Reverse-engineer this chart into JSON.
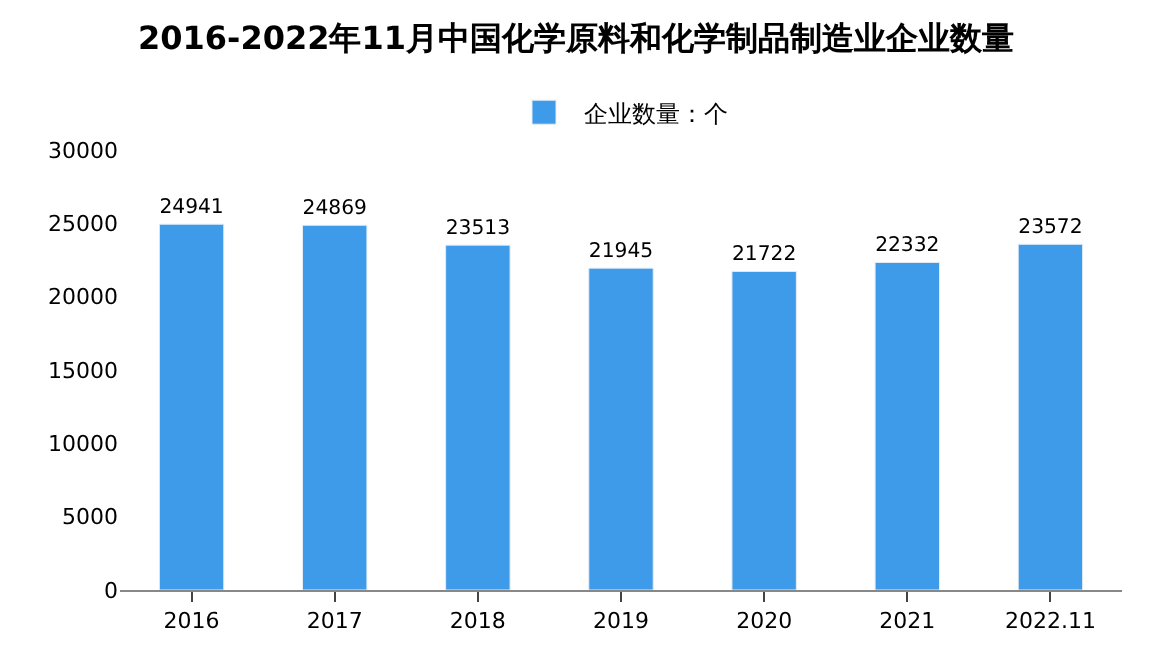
{
  "chart_data": {
    "type": "bar",
    "title": "2016-2022年11月中国化学原料和化学制品制造业企业数量",
    "categories": [
      "2016",
      "2017",
      "2018",
      "2019",
      "2020",
      "2021",
      "2022.11"
    ],
    "series": [
      {
        "name": "企业数量：个",
        "color": "#3d9be9",
        "values": [
          24941,
          24869,
          23513,
          21945,
          21722,
          22332,
          23572
        ]
      }
    ],
    "ylim": [
      0,
      30000
    ],
    "yticks": [
      0,
      5000,
      10000,
      15000,
      20000,
      25000,
      30000
    ],
    "legend": "top",
    "data_labels": true
  }
}
